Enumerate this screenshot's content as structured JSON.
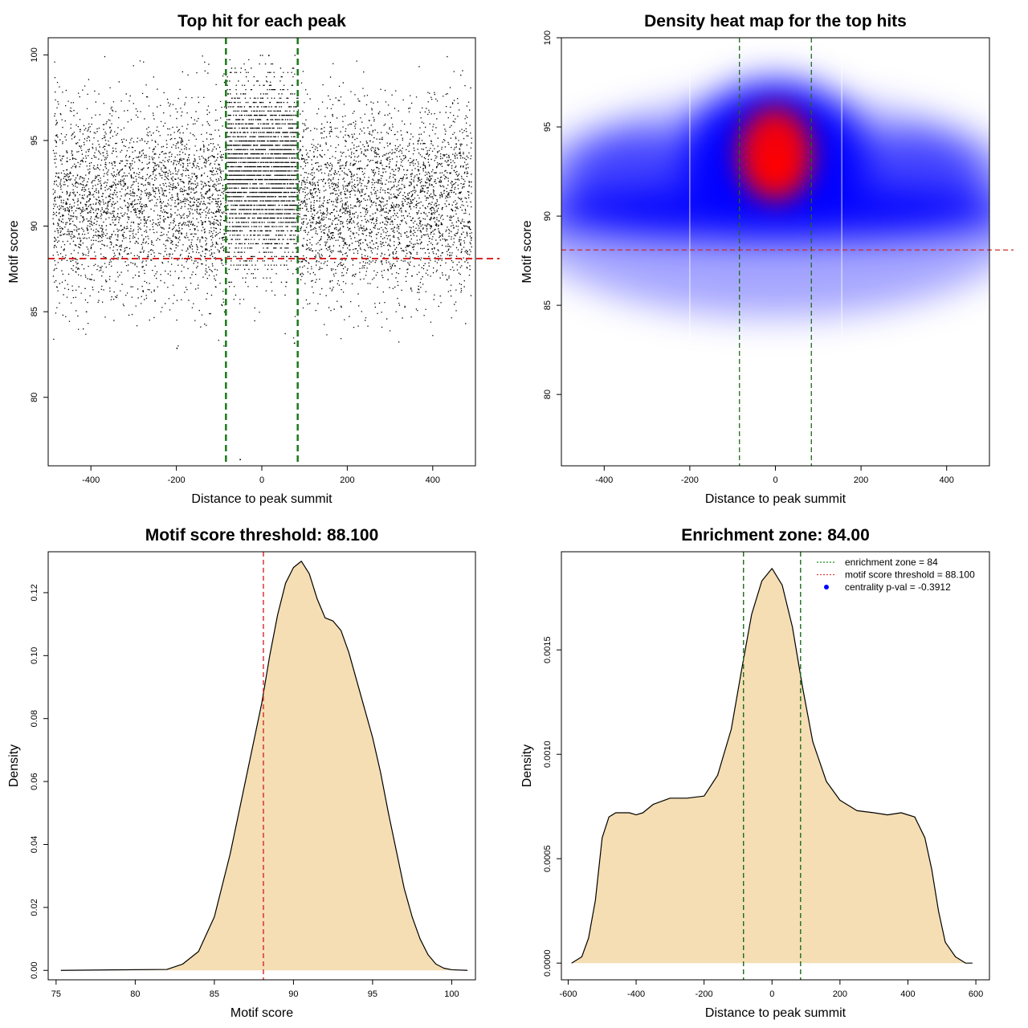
{
  "chart_data": [
    {
      "id": "p1",
      "type": "scatter",
      "title": "Top hit for each peak",
      "xlabel": "Distance to peak summit",
      "ylabel": "Motif score",
      "xlim": [
        -500,
        500
      ],
      "ylim": [
        76,
        101
      ],
      "xticks": [
        -400,
        -200,
        0,
        200,
        400
      ],
      "yticks": [
        80,
        85,
        90,
        95,
        100
      ],
      "reference_lines": {
        "vertical": {
          "x": [
            -84,
            84
          ],
          "color": "#1a7a1a",
          "style": "dashed"
        },
        "horizontal": {
          "y": 88.1,
          "color": "#d62728",
          "style": "dashed"
        }
      },
      "point_cloud": {
        "n_points": 9000,
        "x_range": [
          -490,
          490
        ],
        "score_mean": 91.5,
        "score_sd": 2.8,
        "score_min": 76.4,
        "score_max": 100.0
      }
    },
    {
      "id": "p2",
      "type": "heatmap",
      "title": "Density heat map for the top hits",
      "xlabel": "Distance to peak summit",
      "ylabel": "Motif score",
      "xlim": [
        -500,
        500
      ],
      "ylim": [
        76,
        100
      ],
      "xticks": [
        -400,
        -200,
        0,
        200,
        400
      ],
      "yticks": [
        80,
        85,
        90,
        95,
        100
      ],
      "color_scale": [
        "#ffffff",
        "#0000ff",
        "#ff0000"
      ],
      "hotspot": {
        "x": 0,
        "y": 93.5
      },
      "reference_lines": {
        "vertical": {
          "x": [
            -84,
            84
          ],
          "color": "#1a6b1a",
          "style": "dashed"
        },
        "horizontal": {
          "y": 88.1,
          "color": "#d62728",
          "style": "dashed"
        }
      }
    },
    {
      "id": "p3",
      "type": "area",
      "title": "Motif score threshold: 88.100",
      "xlabel": "Motif score",
      "ylabel": "Density",
      "xlim": [
        74.5,
        101.5
      ],
      "ylim": [
        -0.003,
        0.133
      ],
      "xticks": [
        75,
        80,
        85,
        90,
        95,
        100
      ],
      "yticks": [
        0.0,
        0.02,
        0.04,
        0.06,
        0.08,
        0.1,
        0.12
      ],
      "ytick_labels": [
        "0.00",
        "0.02",
        "0.04",
        "0.06",
        "0.08",
        "0.10",
        "0.12"
      ],
      "fill": "#f5deb3",
      "x": [
        75.3,
        82,
        83,
        84,
        85,
        86,
        87,
        88,
        88.5,
        89,
        89.5,
        90,
        90.5,
        91,
        91.5,
        92,
        92.5,
        93,
        93.5,
        94,
        94.5,
        95,
        95.5,
        96,
        96.5,
        97,
        97.5,
        98,
        98.5,
        99,
        99.5,
        100,
        101
      ],
      "y": [
        0.0,
        0.0003,
        0.002,
        0.006,
        0.017,
        0.037,
        0.061,
        0.085,
        0.1,
        0.113,
        0.123,
        0.128,
        0.13,
        0.126,
        0.118,
        0.112,
        0.111,
        0.108,
        0.101,
        0.092,
        0.083,
        0.074,
        0.063,
        0.05,
        0.038,
        0.026,
        0.017,
        0.01,
        0.005,
        0.002,
        0.0007,
        0.0002,
        0.0
      ],
      "reference_lines": {
        "vertical": {
          "x": [
            88.1
          ],
          "color": "#d62728",
          "style": "dashed"
        }
      }
    },
    {
      "id": "p4",
      "type": "area",
      "title": "Enrichment zone: 84.00",
      "xlabel": "Distance to peak summit",
      "ylabel": "Density",
      "xlim": [
        -620,
        640
      ],
      "ylim": [
        -8e-05,
        0.00197
      ],
      "xticks": [
        -600,
        -400,
        -200,
        0,
        200,
        400,
        600
      ],
      "yticks": [
        0.0,
        0.0005,
        0.001,
        0.0015
      ],
      "ytick_labels": [
        "0.0000",
        "0.0005",
        "0.0010",
        "0.0015"
      ],
      "fill": "#f5deb3",
      "x": [
        -590,
        -560,
        -540,
        -520,
        -500,
        -480,
        -460,
        -440,
        -420,
        -400,
        -380,
        -350,
        -300,
        -250,
        -200,
        -160,
        -120,
        -90,
        -60,
        -30,
        0,
        30,
        60,
        90,
        120,
        160,
        200,
        250,
        300,
        340,
        380,
        420,
        450,
        470,
        490,
        510,
        540,
        570,
        590
      ],
      "y": [
        0.0,
        3e-05,
        0.00012,
        0.0003,
        0.0006,
        0.0007,
        0.00072,
        0.00072,
        0.00072,
        0.00071,
        0.00072,
        0.00076,
        0.00079,
        0.00079,
        0.0008,
        0.0009,
        0.00112,
        0.0014,
        0.00167,
        0.00183,
        0.00189,
        0.00181,
        0.00161,
        0.00132,
        0.00106,
        0.00087,
        0.00078,
        0.00073,
        0.00072,
        0.00071,
        0.00072,
        0.0007,
        0.0006,
        0.00045,
        0.00025,
        0.0001,
        3e-05,
        0.0,
        0.0
      ],
      "reference_lines": {
        "vertical": {
          "x": [
            -84,
            84
          ],
          "color": "#1a6b1a",
          "style": "dashed"
        }
      },
      "legend": {
        "placement": "top-right",
        "entries": [
          {
            "label": "enrichment zone = 84",
            "kind": "line",
            "color": "#1a8a1a"
          },
          {
            "label": "motif score threshold = 88.100",
            "kind": "line",
            "color": "#e04040"
          },
          {
            "label": "centrality p-val = -0.3912",
            "kind": "point",
            "color": "#0000ff"
          }
        ]
      }
    }
  ]
}
